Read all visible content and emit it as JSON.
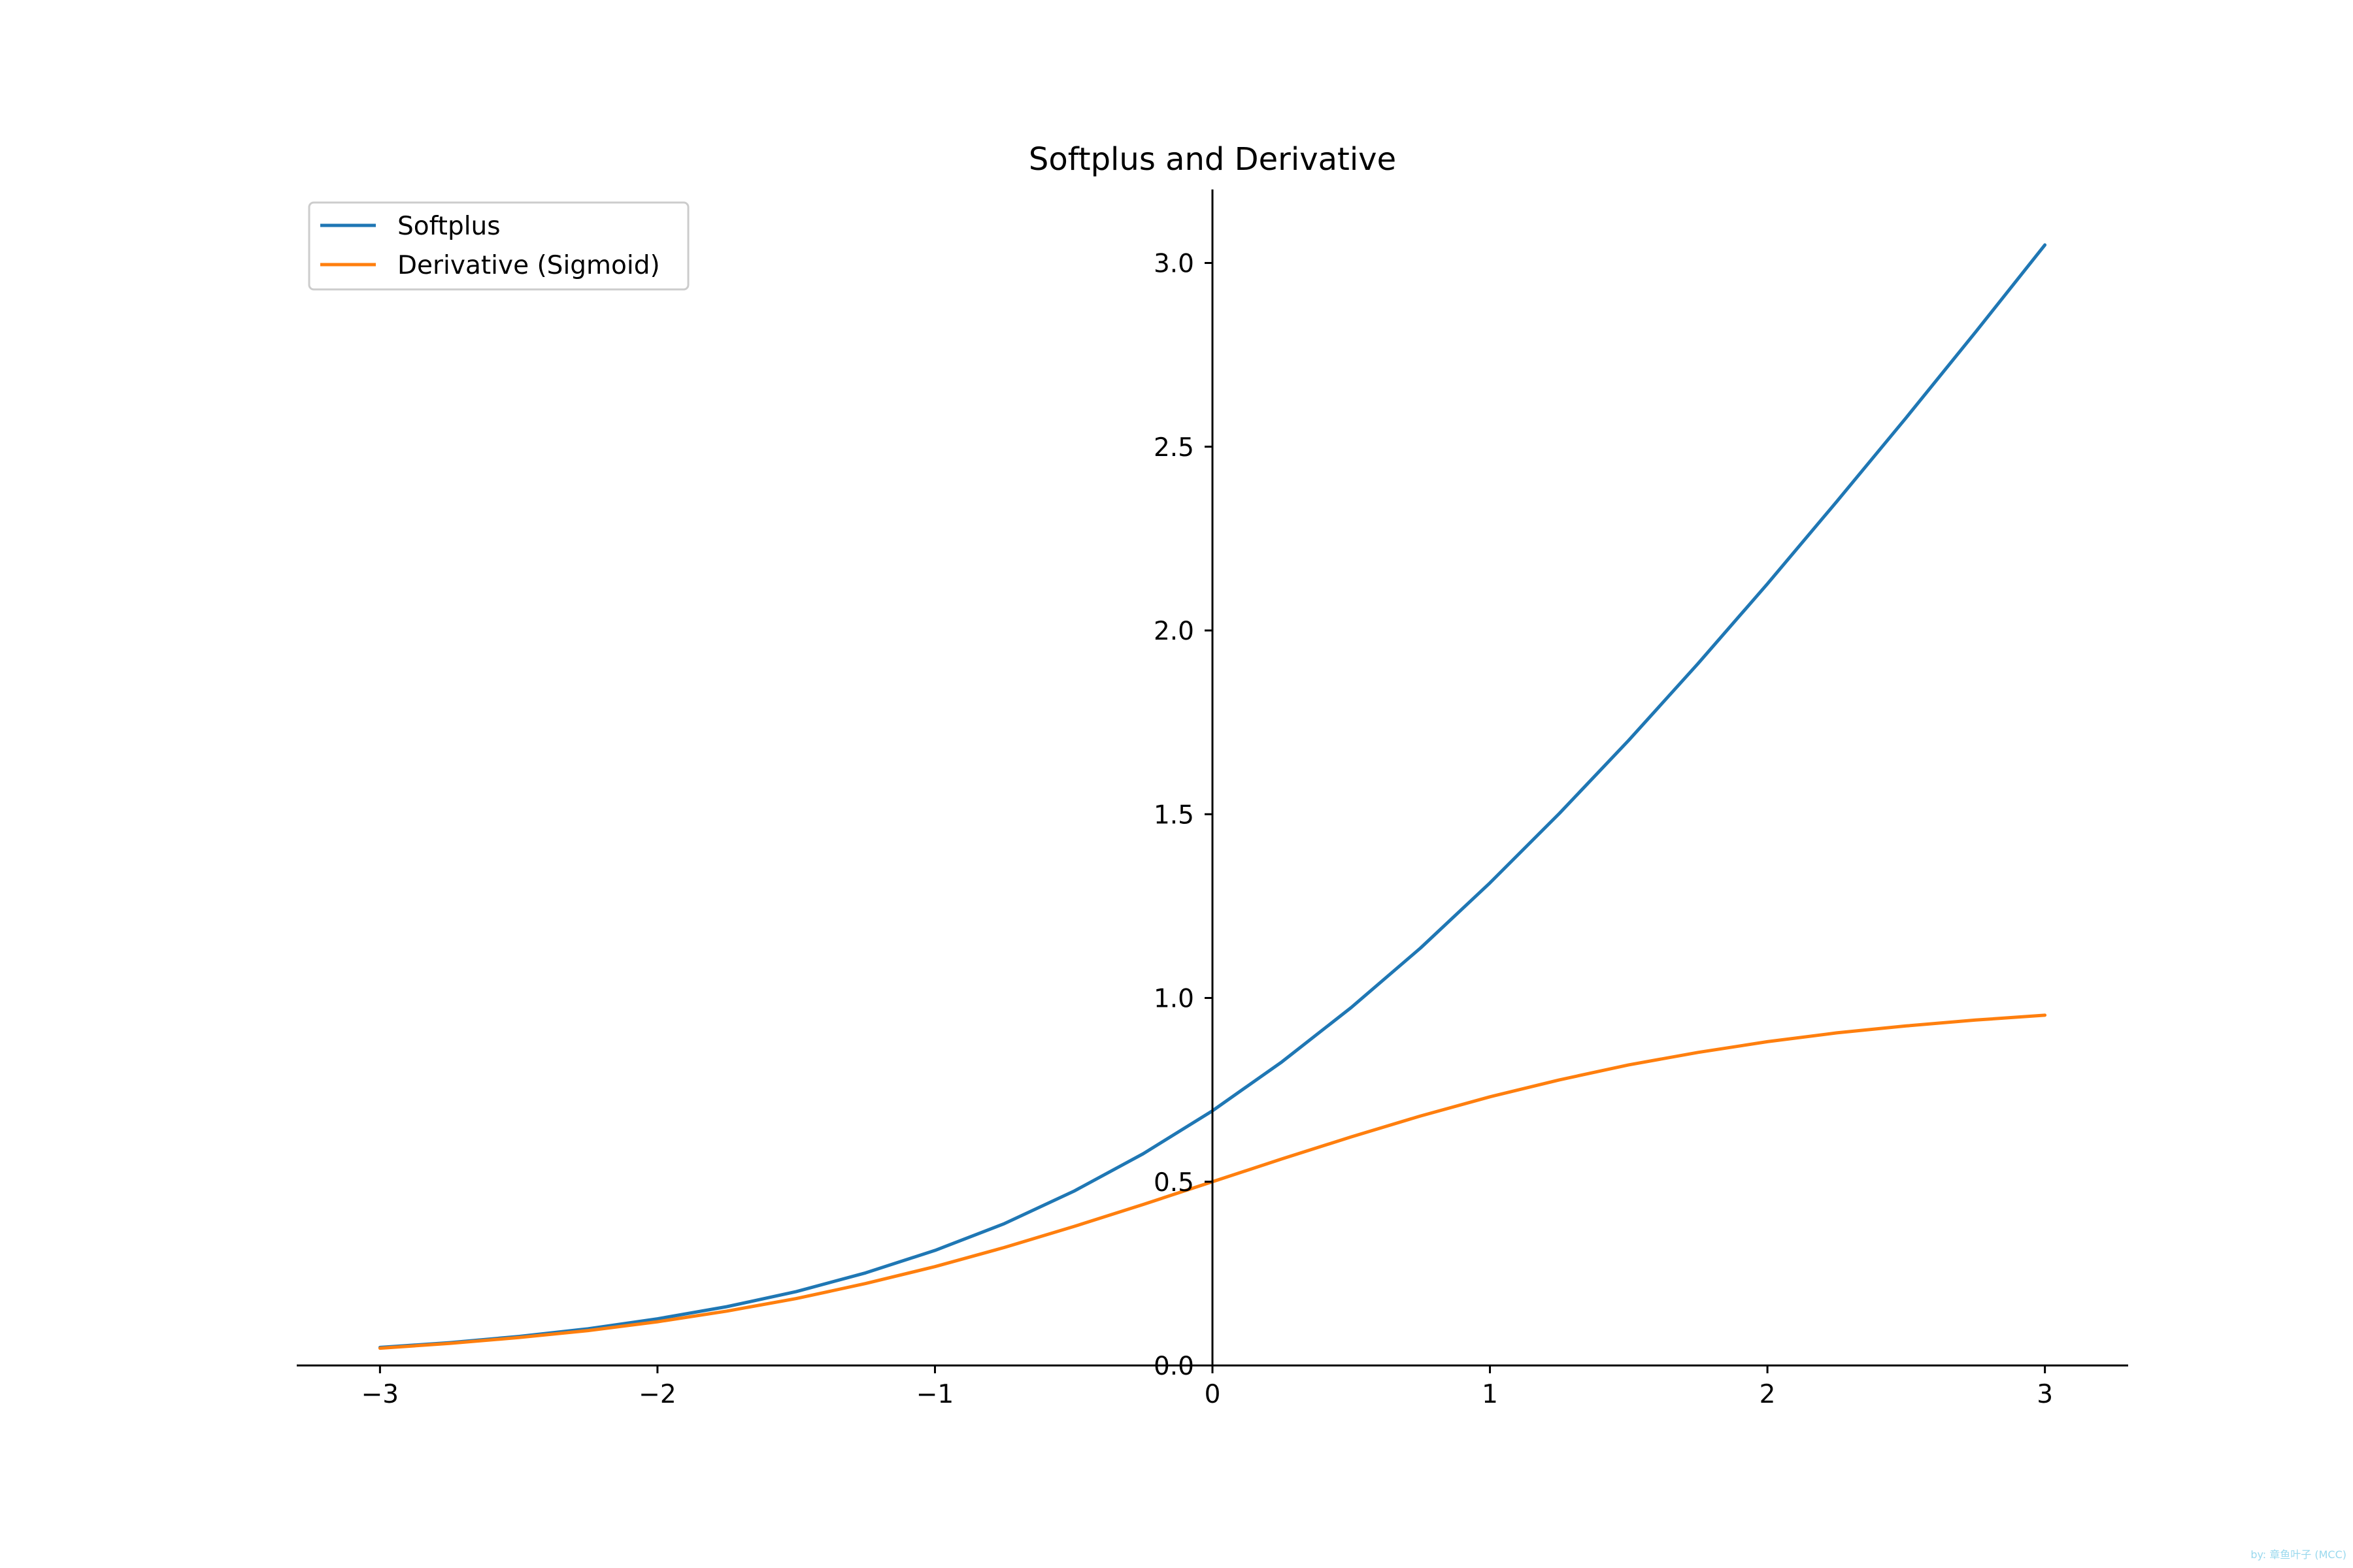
{
  "chart_data": {
    "type": "line",
    "title": "Softplus and Derivative",
    "xlabel": "",
    "ylabel": "",
    "xlim": [
      -3.3,
      3.3
    ],
    "ylim": [
      0,
      3.2
    ],
    "xticks": [
      -3,
      -2,
      -1,
      0,
      1,
      2,
      3
    ],
    "xtick_labels": [
      "−3",
      "−2",
      "−1",
      "0",
      "1",
      "2",
      "3"
    ],
    "yticks": [
      0.0,
      0.5,
      1.0,
      1.5,
      2.0,
      2.5,
      3.0
    ],
    "ytick_labels": [
      "0.0",
      "0.5",
      "1.0",
      "1.5",
      "2.0",
      "2.5",
      "3.0"
    ],
    "grid": false,
    "spines": "centered at origin",
    "legend_position": "top-left",
    "x": [
      -3,
      -2.75,
      -2.5,
      -2.25,
      -2,
      -1.75,
      -1.5,
      -1.25,
      -1,
      -0.75,
      -0.5,
      -0.25,
      0,
      0.25,
      0.5,
      0.75,
      1,
      1.25,
      1.5,
      1.75,
      2,
      2.25,
      2.5,
      2.75,
      3
    ],
    "series": [
      {
        "name": "Softplus",
        "color": "#1f77b4",
        "values": [
          0.049,
          0.062,
          0.079,
          0.1,
          0.127,
          0.16,
          0.201,
          0.252,
          0.313,
          0.386,
          0.474,
          0.576,
          0.693,
          0.826,
          0.974,
          1.136,
          1.313,
          1.502,
          1.701,
          1.91,
          2.127,
          2.351,
          2.579,
          2.812,
          3.049
        ]
      },
      {
        "name": "Derivative (Sigmoid)",
        "color": "#ff7f0e",
        "values": [
          0.047,
          0.06,
          0.076,
          0.095,
          0.119,
          0.148,
          0.182,
          0.223,
          0.269,
          0.321,
          0.378,
          0.438,
          0.5,
          0.562,
          0.622,
          0.679,
          0.731,
          0.777,
          0.818,
          0.852,
          0.881,
          0.905,
          0.924,
          0.94,
          0.953
        ]
      }
    ]
  },
  "watermark": "by: 章鱼叶子 (MCC)"
}
